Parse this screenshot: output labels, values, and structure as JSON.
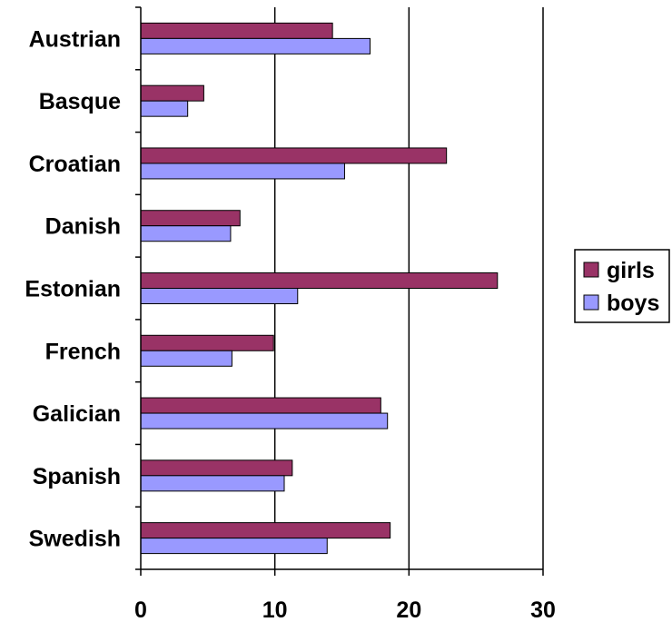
{
  "chart_data": {
    "type": "bar",
    "orientation": "horizontal",
    "categories": [
      "Austrian",
      "Basque",
      "Croatian",
      "Danish",
      "Estonian",
      "French",
      "Galician",
      "Spanish",
      "Swedish"
    ],
    "series": [
      {
        "name": "girls",
        "color": "#993366",
        "values": [
          14.3,
          4.7,
          22.8,
          7.4,
          26.6,
          9.9,
          17.9,
          11.3,
          18.6
        ]
      },
      {
        "name": "boys",
        "color": "#9999ff",
        "values": [
          17.1,
          3.5,
          15.2,
          6.7,
          11.7,
          6.8,
          18.4,
          10.7,
          13.9
        ]
      }
    ],
    "xlim": [
      0,
      30
    ],
    "xticks": [
      0,
      10,
      20,
      30
    ],
    "gridlines": true,
    "legend_position": "right",
    "title": "",
    "xlabel": "",
    "ylabel": ""
  }
}
